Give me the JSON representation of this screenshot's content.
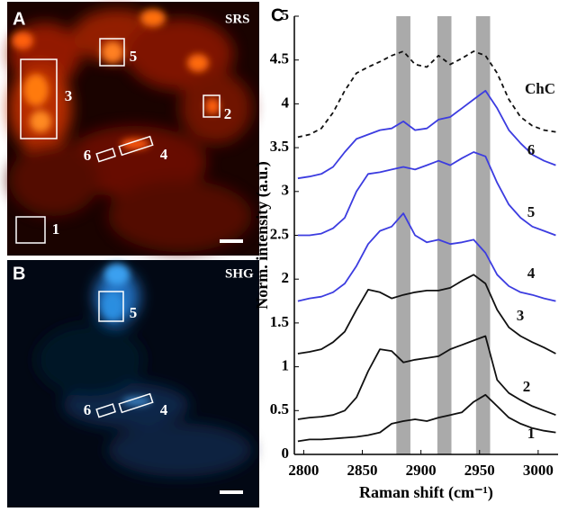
{
  "images": [
    {
      "label": "A",
      "modality": "SRS",
      "regions": [
        "1",
        "2",
        "3",
        "4",
        "5",
        "6"
      ]
    },
    {
      "label": "B",
      "modality": "SHG",
      "regions": [
        "4",
        "5",
        "6"
      ]
    }
  ],
  "chart_data": {
    "type": "line",
    "panel_label": "C",
    "x_label": "Raman shift (cm⁻¹)",
    "y_label": "Norm. intensity (a.u.)",
    "xlim": [
      2792,
      3017
    ],
    "ylim": [
      0,
      5
    ],
    "xticks": [
      2800,
      2850,
      2900,
      2950,
      3000
    ],
    "yticks": [
      0,
      0.5,
      1,
      1.5,
      2,
      2.5,
      3,
      3.5,
      4,
      4.5,
      5
    ],
    "bands": [
      [
        2879,
        2891
      ],
      [
        2914,
        2926
      ],
      [
        2947,
        2959
      ]
    ],
    "band_color": "#aaaaaa",
    "x": [
      2795,
      2805,
      2815,
      2825,
      2835,
      2845,
      2855,
      2865,
      2875,
      2885,
      2895,
      2905,
      2915,
      2925,
      2935,
      2945,
      2955,
      2965,
      2975,
      2985,
      2995,
      3005,
      3015
    ],
    "series": [
      {
        "name": "1",
        "color": "#111111",
        "dashed": false,
        "values": [
          0.15,
          0.17,
          0.17,
          0.18,
          0.19,
          0.2,
          0.22,
          0.25,
          0.35,
          0.38,
          0.4,
          0.38,
          0.42,
          0.45,
          0.48,
          0.6,
          0.68,
          0.55,
          0.42,
          0.35,
          0.3,
          0.27,
          0.25
        ]
      },
      {
        "name": "2",
        "color": "#111111",
        "dashed": false,
        "values": [
          0.4,
          0.42,
          0.43,
          0.45,
          0.5,
          0.65,
          0.95,
          1.2,
          1.18,
          1.05,
          1.08,
          1.1,
          1.12,
          1.2,
          1.25,
          1.3,
          1.35,
          0.85,
          0.7,
          0.62,
          0.55,
          0.5,
          0.45
        ]
      },
      {
        "name": "3",
        "color": "#111111",
        "dashed": false,
        "values": [
          1.15,
          1.17,
          1.2,
          1.28,
          1.4,
          1.65,
          1.88,
          1.85,
          1.78,
          1.82,
          1.85,
          1.87,
          1.87,
          1.9,
          1.98,
          2.05,
          1.95,
          1.65,
          1.45,
          1.35,
          1.28,
          1.22,
          1.15
        ]
      },
      {
        "name": "4",
        "color": "#3c3ce0",
        "dashed": false,
        "values": [
          1.75,
          1.78,
          1.8,
          1.85,
          1.95,
          2.15,
          2.4,
          2.55,
          2.6,
          2.75,
          2.5,
          2.42,
          2.45,
          2.4,
          2.42,
          2.45,
          2.3,
          2.05,
          1.92,
          1.85,
          1.82,
          1.78,
          1.75
        ]
      },
      {
        "name": "5",
        "color": "#3c3ce0",
        "dashed": false,
        "values": [
          2.5,
          2.5,
          2.52,
          2.58,
          2.7,
          3.0,
          3.2,
          3.22,
          3.25,
          3.28,
          3.25,
          3.3,
          3.35,
          3.3,
          3.38,
          3.45,
          3.4,
          3.1,
          2.85,
          2.7,
          2.6,
          2.55,
          2.5
        ]
      },
      {
        "name": "6",
        "color": "#3c3ce0",
        "dashed": false,
        "values": [
          3.15,
          3.17,
          3.2,
          3.28,
          3.45,
          3.6,
          3.65,
          3.7,
          3.72,
          3.8,
          3.7,
          3.72,
          3.82,
          3.85,
          3.95,
          4.05,
          4.15,
          3.95,
          3.7,
          3.55,
          3.42,
          3.35,
          3.3
        ]
      },
      {
        "name": "ChC",
        "color": "#111111",
        "dashed": true,
        "values": [
          3.62,
          3.65,
          3.72,
          3.9,
          4.15,
          4.35,
          4.42,
          4.48,
          4.55,
          4.6,
          4.45,
          4.42,
          4.55,
          4.45,
          4.52,
          4.6,
          4.55,
          4.35,
          4.05,
          3.85,
          3.75,
          3.7,
          3.68
        ]
      }
    ]
  }
}
